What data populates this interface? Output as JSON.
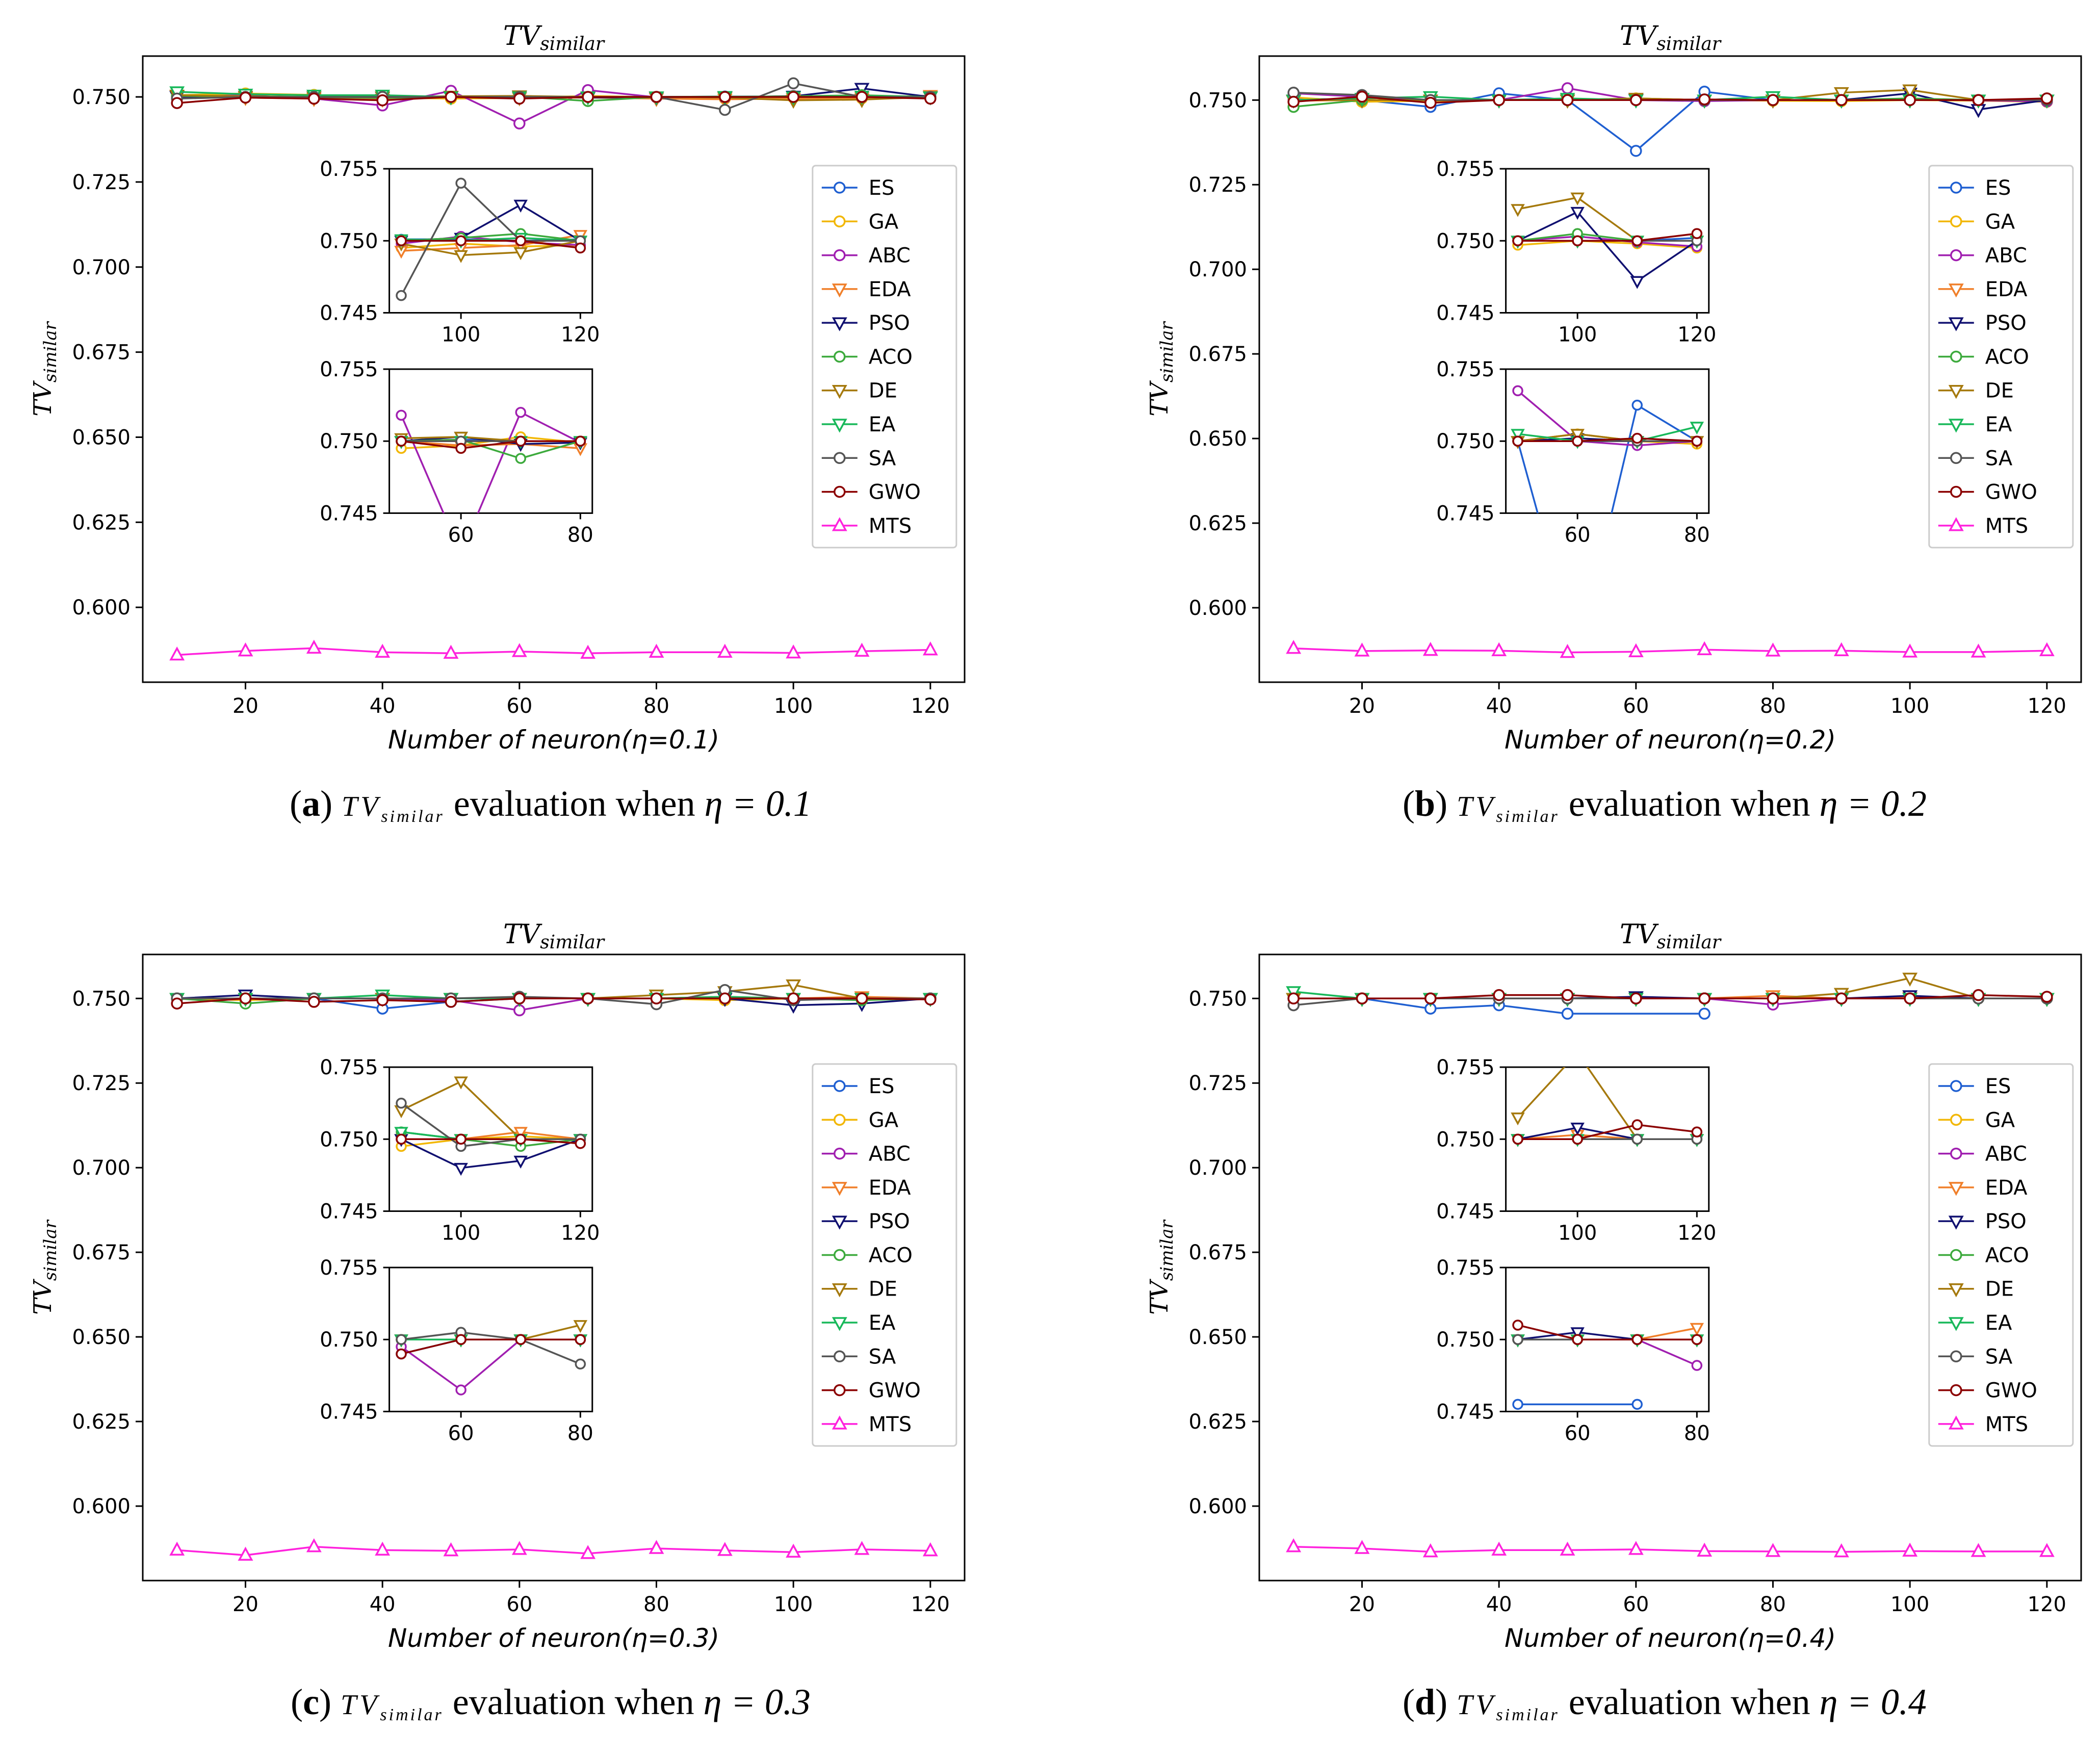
{
  "colors": {
    "ES": "#1f5fd1",
    "GA": "#f2b705",
    "ABC": "#a01fb0",
    "EDA": "#f07f2a",
    "PSO": "#101070",
    "ACO": "#3daa3d",
    "DE": "#a5790d",
    "EA": "#18b85a",
    "SA": "#555555",
    "GWO": "#8b0000",
    "MTS": "#ff22dd"
  },
  "chart_data": [
    {
      "type": "line",
      "title_main": "TV",
      "title_sub": "similar",
      "xlabel": "Number of neuron(η=0.1)",
      "ylabel_main": "TV",
      "ylabel_sub": "similar",
      "xlim": [
        5,
        125
      ],
      "ylim": [
        0.578,
        0.762
      ],
      "xticks": [
        "20",
        "40",
        "60",
        "80",
        "100",
        "120"
      ],
      "yticks": [
        "0.600",
        "0.625",
        "0.650",
        "0.675",
        "0.700",
        "0.725",
        "0.750"
      ],
      "caption": {
        "label": "a",
        "pre": "TV",
        "sub": "similar",
        "text": "evaluation when",
        "eta": "η = 0.1"
      },
      "legend": [
        "ES",
        "GA",
        "ABC",
        "EDA",
        "PSO",
        "ACO",
        "DE",
        "EA",
        "SA",
        "GWO",
        "MTS"
      ],
      "x": [
        10,
        20,
        30,
        40,
        50,
        60,
        70,
        80,
        90,
        100,
        110,
        120
      ],
      "series": [
        {
          "name": "ES",
          "values": [
            0.7502,
            0.7501,
            0.75,
            0.75,
            0.75,
            0.7501,
            0.75,
            0.75,
            0.7501,
            0.7501,
            0.75,
            0.7501
          ]
        },
        {
          "name": "GA",
          "values": [
            0.7505,
            0.751,
            0.7506,
            0.7498,
            0.7495,
            0.7497,
            0.7503,
            0.7499,
            0.7495,
            0.7498,
            0.7496,
            0.7497
          ]
        },
        {
          "name": "ABC",
          "values": [
            0.75,
            0.7505,
            0.7495,
            0.7475,
            0.7518,
            0.7422,
            0.752,
            0.7499,
            0.7498,
            0.7503,
            0.7499,
            0.7497
          ]
        },
        {
          "name": "EDA",
          "values": [
            0.7503,
            0.7498,
            0.7495,
            0.7493,
            0.75,
            0.7497,
            0.7498,
            0.7495,
            0.7493,
            0.7495,
            0.7497,
            0.7504
          ]
        },
        {
          "name": "PSO",
          "values": [
            0.7501,
            0.7502,
            0.75,
            0.7499,
            0.75,
            0.7503,
            0.7498,
            0.7499,
            0.75,
            0.7502,
            0.7525,
            0.75
          ]
        },
        {
          "name": "ACO",
          "values": [
            0.7503,
            0.7501,
            0.75,
            0.7497,
            0.75,
            0.7501,
            0.7488,
            0.75,
            0.75,
            0.7502,
            0.7505,
            0.75
          ]
        },
        {
          "name": "DE",
          "values": [
            0.7505,
            0.7502,
            0.75,
            0.75,
            0.7502,
            0.7503,
            0.75,
            0.75,
            0.7498,
            0.749,
            0.7492,
            0.75
          ]
        },
        {
          "name": "EA",
          "values": [
            0.7515,
            0.7508,
            0.7505,
            0.7505,
            0.75,
            0.75,
            0.75,
            0.75,
            0.7501,
            0.75,
            0.7502,
            0.75
          ]
        },
        {
          "name": "SA",
          "values": [
            0.7495,
            0.75,
            0.75,
            0.75,
            0.75,
            0.75,
            0.75,
            0.75,
            0.7462,
            0.754,
            0.75,
            0.75
          ]
        },
        {
          "name": "GWO",
          "values": [
            0.7482,
            0.7498,
            0.7495,
            0.749,
            0.75,
            0.7495,
            0.75,
            0.75,
            0.75,
            0.75,
            0.75,
            0.7495
          ]
        },
        {
          "name": "MTS",
          "values": [
            0.586,
            0.5872,
            0.588,
            0.5868,
            0.5865,
            0.587,
            0.5865,
            0.5868,
            0.5868,
            0.5866,
            0.5871,
            0.5875
          ]
        }
      ]
    },
    {
      "type": "line",
      "title_main": "TV",
      "title_sub": "similar",
      "xlabel": "Number of neuron(η=0.2)",
      "ylabel_main": "TV",
      "ylabel_sub": "similar",
      "xlim": [
        5,
        125
      ],
      "ylim": [
        0.578,
        0.763
      ],
      "xticks": [
        "20",
        "40",
        "60",
        "80",
        "100",
        "120"
      ],
      "yticks": [
        "0.600",
        "0.625",
        "0.650",
        "0.675",
        "0.700",
        "0.725",
        "0.750"
      ],
      "caption": {
        "label": "b",
        "pre": "TV",
        "sub": "similar",
        "text": "evaluation when",
        "eta": "η = 0.2"
      },
      "legend": [
        "ES",
        "GA",
        "ABC",
        "EDA",
        "PSO",
        "ACO",
        "DE",
        "EA",
        "SA",
        "GWO",
        "MTS"
      ],
      "x": [
        10,
        20,
        30,
        40,
        50,
        60,
        70,
        80,
        90,
        100,
        110,
        120
      ],
      "series": [
        {
          "name": "ES",
          "values": [
            0.7505,
            0.75,
            0.748,
            0.752,
            0.75,
            0.735,
            0.7525,
            0.75,
            0.75,
            0.75,
            0.75,
            0.7502
          ]
        },
        {
          "name": "GA",
          "values": [
            0.7508,
            0.7495,
            0.7498,
            0.75,
            0.75,
            0.7505,
            0.75,
            0.7498,
            0.7497,
            0.75,
            0.7498,
            0.7495
          ]
        },
        {
          "name": "ABC",
          "values": [
            0.752,
            0.751,
            0.75,
            0.75,
            0.7535,
            0.75,
            0.7497,
            0.75,
            0.75,
            0.7503,
            0.7499,
            0.7496
          ]
        },
        {
          "name": "EDA",
          "values": [
            0.7498,
            0.75,
            0.75,
            0.75,
            0.75,
            0.7505,
            0.75,
            0.75,
            0.75,
            0.75,
            0.75,
            0.75
          ]
        },
        {
          "name": "PSO",
          "values": [
            0.75,
            0.75,
            0.75,
            0.75,
            0.75,
            0.7502,
            0.75,
            0.75,
            0.75,
            0.752,
            0.7472,
            0.75
          ]
        },
        {
          "name": "ACO",
          "values": [
            0.748,
            0.75,
            0.75,
            0.75,
            0.75,
            0.75,
            0.75,
            0.75,
            0.75,
            0.7505,
            0.75,
            0.75
          ]
        },
        {
          "name": "DE",
          "values": [
            0.75,
            0.75,
            0.75,
            0.75,
            0.75,
            0.7505,
            0.75,
            0.75,
            0.7522,
            0.753,
            0.75,
            0.75
          ]
        },
        {
          "name": "EA",
          "values": [
            0.75,
            0.7505,
            0.751,
            0.75,
            0.7505,
            0.75,
            0.75,
            0.751,
            0.75,
            0.75,
            0.75,
            0.75
          ]
        },
        {
          "name": "SA",
          "values": [
            0.7522,
            0.7515,
            0.75,
            0.75,
            0.75,
            0.75,
            0.75,
            0.75,
            0.75,
            0.75,
            0.75,
            0.75
          ]
        },
        {
          "name": "GWO",
          "values": [
            0.7495,
            0.751,
            0.7492,
            0.75,
            0.75,
            0.75,
            0.7502,
            0.75,
            0.75,
            0.75,
            0.75,
            0.7505
          ]
        },
        {
          "name": "MTS",
          "values": [
            0.588,
            0.5872,
            0.5874,
            0.5873,
            0.5868,
            0.587,
            0.5876,
            0.5872,
            0.5873,
            0.5869,
            0.5869,
            0.5873
          ]
        }
      ]
    },
    {
      "type": "line",
      "title_main": "TV",
      "title_sub": "similar",
      "xlabel": "Number of neuron(η=0.3)",
      "ylabel_main": "TV",
      "ylabel_sub": "similar",
      "xlim": [
        5,
        125
      ],
      "ylim": [
        0.578,
        0.763
      ],
      "xticks": [
        "20",
        "40",
        "60",
        "80",
        "100",
        "120"
      ],
      "yticks": [
        "0.600",
        "0.625",
        "0.650",
        "0.675",
        "0.700",
        "0.725",
        "0.750"
      ],
      "caption": {
        "label": "c",
        "pre": "TV",
        "sub": "similar",
        "text": "evaluation when",
        "eta": "η = 0.3"
      },
      "legend": [
        "ES",
        "GA",
        "ABC",
        "EDA",
        "PSO",
        "ACO",
        "DE",
        "EA",
        "SA",
        "GWO",
        "MTS"
      ],
      "x": [
        10,
        20,
        30,
        40,
        50,
        60,
        70,
        80,
        90,
        100,
        110,
        120
      ],
      "series": [
        {
          "name": "ES",
          "values": [
            0.75,
            0.75,
            0.75,
            0.747,
            0.749,
            0.75,
            0.75,
            0.75,
            0.75,
            0.75,
            0.75,
            0.75
          ]
        },
        {
          "name": "GA",
          "values": [
            0.75,
            0.7495,
            0.75,
            0.75,
            0.75,
            0.75,
            0.75,
            0.75,
            0.7495,
            0.75,
            0.7502,
            0.75
          ]
        },
        {
          "name": "ABC",
          "values": [
            0.75,
            0.75,
            0.75,
            0.75,
            0.7495,
            0.7465,
            0.75,
            0.75,
            0.75,
            0.75,
            0.75,
            0.75
          ]
        },
        {
          "name": "EDA",
          "values": [
            0.75,
            0.75,
            0.75,
            0.75,
            0.75,
            0.75,
            0.75,
            0.75,
            0.75,
            0.75,
            0.7505,
            0.75
          ]
        },
        {
          "name": "PSO",
          "values": [
            0.75,
            0.751,
            0.75,
            0.75,
            0.75,
            0.75,
            0.75,
            0.75,
            0.75,
            0.748,
            0.7485,
            0.75
          ]
        },
        {
          "name": "ACO",
          "values": [
            0.75,
            0.7485,
            0.75,
            0.75,
            0.75,
            0.75,
            0.75,
            0.75,
            0.7505,
            0.75,
            0.7495,
            0.75
          ]
        },
        {
          "name": "DE",
          "values": [
            0.75,
            0.75,
            0.75,
            0.75,
            0.75,
            0.75,
            0.75,
            0.751,
            0.752,
            0.754,
            0.75,
            0.75
          ]
        },
        {
          "name": "EA",
          "values": [
            0.75,
            0.75,
            0.75,
            0.751,
            0.75,
            0.75,
            0.75,
            0.75,
            0.7505,
            0.75,
            0.75,
            0.75
          ]
        },
        {
          "name": "SA",
          "values": [
            0.75,
            0.75,
            0.75,
            0.75,
            0.75,
            0.7505,
            0.75,
            0.7483,
            0.7525,
            0.7495,
            0.75,
            0.75
          ]
        },
        {
          "name": "GWO",
          "values": [
            0.7485,
            0.75,
            0.749,
            0.7495,
            0.749,
            0.75,
            0.75,
            0.75,
            0.75,
            0.75,
            0.75,
            0.7497
          ]
        },
        {
          "name": "MTS",
          "values": [
            0.587,
            0.5855,
            0.588,
            0.587,
            0.5868,
            0.5872,
            0.586,
            0.5875,
            0.5869,
            0.5864,
            0.5872,
            0.5868
          ]
        }
      ]
    },
    {
      "type": "line",
      "title_main": "TV",
      "title_sub": "similar",
      "xlabel": "Number of neuron(η=0.4)",
      "ylabel_main": "TV",
      "ylabel_sub": "similar",
      "xlim": [
        5,
        125
      ],
      "ylim": [
        0.578,
        0.763
      ],
      "xticks": [
        "20",
        "40",
        "60",
        "80",
        "100",
        "120"
      ],
      "yticks": [
        "0.600",
        "0.625",
        "0.650",
        "0.675",
        "0.700",
        "0.725",
        "0.750"
      ],
      "caption": {
        "label": "d",
        "pre": "TV",
        "sub": "similar",
        "text": "evaluation when",
        "eta": "η = 0.4"
      },
      "legend": [
        "ES",
        "GA",
        "ABC",
        "EDA",
        "PSO",
        "ACO",
        "DE",
        "EA",
        "SA",
        "GWO",
        "MTS"
      ],
      "x": [
        10,
        20,
        30,
        40,
        50,
        60,
        70,
        80,
        90,
        100,
        110,
        120
      ],
      "series": [
        {
          "name": "ES",
          "values": [
            0.75,
            0.75,
            0.747,
            0.748,
            0.7455,
            null,
            0.7455,
            null,
            null,
            null,
            null,
            null
          ]
        },
        {
          "name": "GA",
          "values": [
            0.75,
            0.75,
            0.75,
            0.75,
            0.75,
            0.75,
            0.75,
            0.75,
            0.75,
            0.75,
            0.75,
            0.75
          ]
        },
        {
          "name": "ABC",
          "values": [
            0.75,
            0.75,
            0.75,
            0.75,
            0.75,
            0.75,
            0.75,
            0.7482,
            0.75,
            0.75,
            0.75,
            0.75
          ]
        },
        {
          "name": "EDA",
          "values": [
            0.75,
            0.75,
            0.75,
            0.75,
            0.75,
            0.75,
            0.75,
            0.7508,
            0.75,
            0.7503,
            0.75,
            0.75
          ]
        },
        {
          "name": "PSO",
          "values": [
            0.75,
            0.75,
            0.75,
            0.75,
            0.75,
            0.7505,
            0.75,
            0.75,
            0.75,
            0.7508,
            0.75,
            0.75
          ]
        },
        {
          "name": "ACO",
          "values": [
            0.75,
            0.75,
            0.75,
            0.75,
            0.75,
            0.75,
            0.75,
            0.75,
            0.75,
            0.75,
            0.75,
            0.75
          ]
        },
        {
          "name": "DE",
          "values": [
            0.75,
            0.75,
            0.75,
            0.75,
            0.75,
            0.75,
            0.75,
            0.75,
            0.7515,
            0.756,
            0.75,
            0.75
          ]
        },
        {
          "name": "EA",
          "values": [
            0.752,
            0.75,
            0.75,
            0.75,
            0.75,
            0.75,
            0.75,
            0.75,
            0.75,
            0.75,
            0.75,
            0.75
          ]
        },
        {
          "name": "SA",
          "values": [
            0.748,
            0.75,
            0.75,
            0.75,
            0.75,
            0.75,
            0.75,
            0.75,
            0.75,
            0.75,
            0.75,
            0.75
          ]
        },
        {
          "name": "GWO",
          "values": [
            0.75,
            0.75,
            0.75,
            0.751,
            0.751,
            0.75,
            0.75,
            0.75,
            0.75,
            0.75,
            0.751,
            0.7505
          ]
        },
        {
          "name": "MTS",
          "values": [
            0.588,
            0.5875,
            0.5865,
            0.587,
            0.587,
            0.5872,
            0.5867,
            0.5866,
            0.5865,
            0.5867,
            0.5866,
            0.5866
          ]
        }
      ]
    }
  ]
}
